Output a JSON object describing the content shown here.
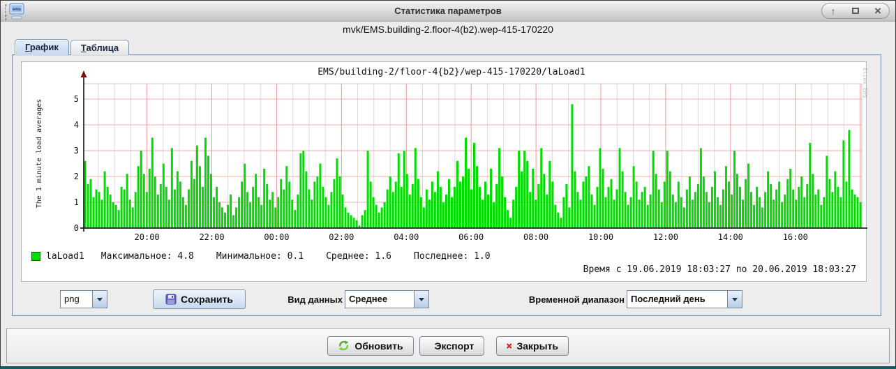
{
  "window": {
    "title": "Статистика параметров",
    "subtitle": "mvk/EMS.building-2.floor-4(b2).wep-415-170220",
    "icons": {
      "shade": "↑",
      "maximize": "maximize-box",
      "close": "×"
    }
  },
  "tabs": [
    {
      "label": "График"
    },
    {
      "label": "Таблица"
    }
  ],
  "chart_data": {
    "type": "bar",
    "title": "EMS/building-2/floor-4{b2}/wep-415-170220/laLoad1",
    "ylabel": "The 1 minute load averages",
    "watermark": "Eltex EMS",
    "ylim": [
      0,
      5.6
    ],
    "y_ticks": [
      0,
      1,
      2,
      3,
      4,
      5
    ],
    "x_start_hour": 18.05,
    "x_span_hours": 24,
    "x_minor_step_hours": 0.5,
    "x_major_ticks": [
      {
        "hour": 20,
        "label": "20:00"
      },
      {
        "hour": 22,
        "label": "22:00"
      },
      {
        "hour": 24,
        "label": "00:00"
      },
      {
        "hour": 26,
        "label": "02:00"
      },
      {
        "hour": 28,
        "label": "04:00"
      },
      {
        "hour": 30,
        "label": "06:00"
      },
      {
        "hour": 32,
        "label": "08:00"
      },
      {
        "hour": 34,
        "label": "10:00"
      },
      {
        "hour": 36,
        "label": "12:00"
      },
      {
        "hour": 38,
        "label": "14:00"
      },
      {
        "hour": 40,
        "label": "16:00"
      },
      {
        "hour": 42,
        "label": ""
      }
    ],
    "grid": true,
    "legend_position": "bottom-left",
    "stats": {
      "max": 4.8,
      "min": 0.1,
      "avg": 1.6,
      "last": 1.0
    },
    "series": [
      {
        "name": "laLoad1",
        "color": "#00dc00",
        "values": [
          2.6,
          1.7,
          1.9,
          1.2,
          1.5,
          1.4,
          1.1,
          2.2,
          1.6,
          1.3,
          1.0,
          0.9,
          0.7,
          1.6,
          1.5,
          2.1,
          1.1,
          0.8,
          1.4,
          2.4,
          3.0,
          2.1,
          1.4,
          2.3,
          3.5,
          2.0,
          1.3,
          1.7,
          2.5,
          1.6,
          1.1,
          3.1,
          1.5,
          2.2,
          1.8,
          1.2,
          0.9,
          1.5,
          2.6,
          1.9,
          3.2,
          2.4,
          1.6,
          3.5,
          2.8,
          2.1,
          1.2,
          1.6,
          1.0,
          0.8,
          0.6,
          0.9,
          1.3,
          0.5,
          0.8,
          1.2,
          1.8,
          2.5,
          1.4,
          1.0,
          1.6,
          2.1,
          1.2,
          0.9,
          2.3,
          1.7,
          1.1,
          1.4,
          0.8,
          1.2,
          1.9,
          1.5,
          2.4,
          1.8,
          1.1,
          0.7,
          1.3,
          2.9,
          3.0,
          2.2,
          1.5,
          1.1,
          1.8,
          2.0,
          2.5,
          1.6,
          1.2,
          0.9,
          1.4,
          1.9,
          2.7,
          2.0,
          1.3,
          0.8,
          0.6,
          0.5,
          0.4,
          0.3,
          0.1,
          0.5,
          0.7,
          3.0,
          1.8,
          1.2,
          0.9,
          0.6,
          0.8,
          1.0,
          1.5,
          2.0,
          1.4,
          1.8,
          2.9,
          1.6,
          3.0,
          2.1,
          1.3,
          1.7,
          3.1,
          1.9,
          1.2,
          0.8,
          1.5,
          1.1,
          1.8,
          1.4,
          2.2,
          1.6,
          1.0,
          1.3,
          1.9,
          1.2,
          1.6,
          2.6,
          1.8,
          2.0,
          3.5,
          2.3,
          1.5,
          3.3,
          2.4,
          1.6,
          1.1,
          1.8,
          1.3,
          2.3,
          1.0,
          1.7,
          3.1,
          2.0,
          1.2,
          0.7,
          0.4,
          1.1,
          1.6,
          3.0,
          2.2,
          3.0,
          2.6,
          1.4,
          2.3,
          1.1,
          1.7,
          3.1,
          2.1,
          1.3,
          2.6,
          1.8,
          0.9,
          0.6,
          0.4,
          1.2,
          1.7,
          0.8,
          4.8,
          2.2,
          1.4,
          1.1,
          1.8,
          2.0,
          2.4,
          1.3,
          0.9,
          1.6,
          3.1,
          2.3,
          1.2,
          1.6,
          1.9,
          1.1,
          1.5,
          3.1,
          2.2,
          1.4,
          0.9,
          1.2,
          2.4,
          1.8,
          1.1,
          1.4,
          1.6,
          0.9,
          1.3,
          3.0,
          2.1,
          1.5,
          1.0,
          1.8,
          3.0,
          2.2,
          1.3,
          1.0,
          1.8,
          1.2,
          0.8,
          1.5,
          2.0,
          1.1,
          1.4,
          1.7,
          3.1,
          2.0,
          1.4,
          1.0,
          1.6,
          2.2,
          1.2,
          0.9,
          1.5,
          2.4,
          1.8,
          1.3,
          3.0,
          2.1,
          1.6,
          1.1,
          1.9,
          2.5,
          1.4,
          0.9,
          1.6,
          1.2,
          0.8,
          1.4,
          2.2,
          1.7,
          1.1,
          1.5,
          1.8,
          1.0,
          1.3,
          1.9,
          2.3,
          1.5,
          1.1,
          1.6,
          2.0,
          1.2,
          1.7,
          3.3,
          2.1,
          1.3,
          1.5,
          0.9,
          1.2,
          2.8,
          1.9,
          1.4,
          2.2,
          1.6,
          1.2,
          3.4,
          1.8,
          3.8,
          1.5,
          1.3,
          1.2,
          1.0
        ]
      }
    ]
  },
  "legend": {
    "name": "laLoad1",
    "max": "Максимальное: 4.8",
    "min": "Минимальное: 0.1",
    "avg": "Среднее: 1.6",
    "last": "Последнее: 1.0"
  },
  "time_range_text": "Время с 19.06.2019 18:03:27 по 20.06.2019 18:03:27",
  "controls": {
    "format_value": "png",
    "save_label": "Сохранить",
    "data_kind_label": "Вид данных",
    "data_kind_value": "Среднее",
    "time_range_label": "Временной диапазон",
    "time_range_value": "Последний день"
  },
  "footer": {
    "refresh_label": "Обновить",
    "export_label": "Экспорт",
    "close_label": "Закрыть"
  },
  "colors": {
    "bar": "#00dc00",
    "grid_minor": "#dadada",
    "grid_major_h": "#f5abab",
    "grid_major_v": "#ee9a9a",
    "frame": "#c9c9c9",
    "axis": "#000000",
    "axis_arrow": "#7b1010"
  }
}
